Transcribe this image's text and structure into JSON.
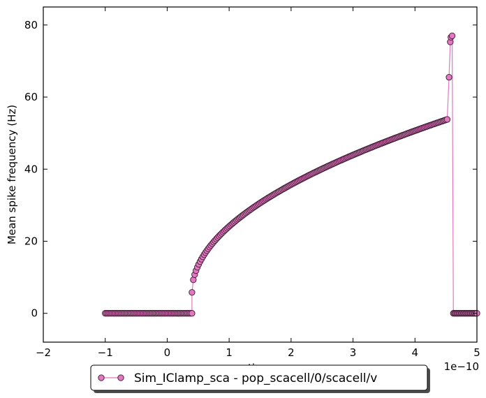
{
  "chart_data": {
    "type": "line",
    "title": "",
    "xlabel": "time",
    "ylabel": "Mean spike frequency (Hz)",
    "x_offset_label": "1e−10",
    "xlim": [
      -2,
      5
    ],
    "ylim": [
      -8,
      85
    ],
    "xticks": [
      -2,
      -1,
      0,
      1,
      2,
      3,
      4,
      5
    ],
    "yticks": [
      0,
      20,
      40,
      60,
      80
    ],
    "grid": false,
    "legend_position": "bottom-center",
    "series": [
      {
        "name": "Sim_IClamp_sca - pop_scacell/0/scacell/v",
        "color": "#e377c2",
        "marker": "circle",
        "segments": [
          {
            "x_start": -1.0,
            "x_end": 0.4,
            "points": 60,
            "shape": "constant",
            "value": 0
          },
          {
            "x_start": 0.4,
            "x_end": 4.52,
            "points": 190,
            "shape": "sqrt",
            "y_start": 5.8,
            "y_end": 53.8
          },
          {
            "x": [
              4.55,
              4.57,
              4.58,
              4.6
            ],
            "y": [
              65.5,
              75.3,
              76.6,
              77.0
            ]
          },
          {
            "x_start": 4.62,
            "x_end": 5.0,
            "points": 22,
            "shape": "constant",
            "value": 0
          }
        ]
      }
    ]
  }
}
